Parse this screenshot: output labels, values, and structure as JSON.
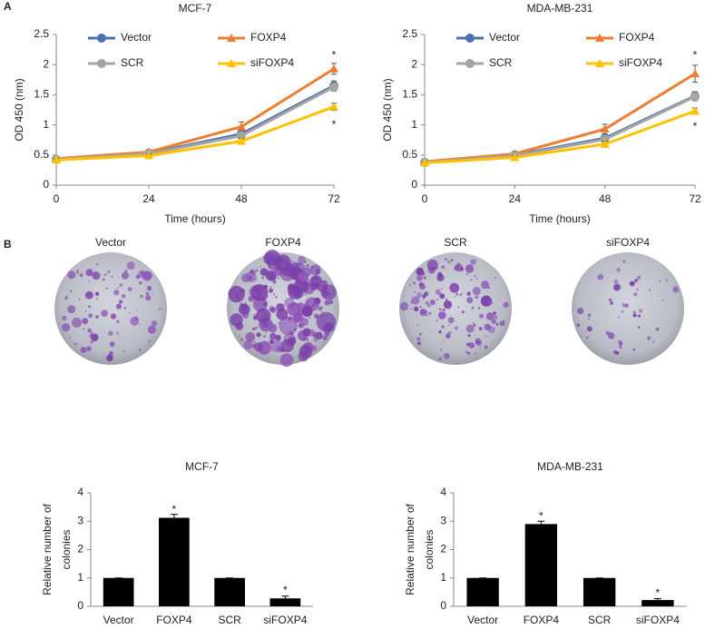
{
  "panel_labels": [
    "A",
    "B"
  ],
  "dish_labels": [
    "Vector",
    "FOXP4",
    "SCR",
    "siFOXP4"
  ],
  "chart_data": [
    {
      "type": "line",
      "title": "MCF-7",
      "xlabel": "Time (hours)",
      "ylabel": "OD 450 (nm)",
      "x": [
        0,
        24,
        48,
        72
      ],
      "xlim": [
        0,
        72
      ],
      "xticks": [
        0,
        24,
        48,
        72
      ],
      "ylim": [
        0,
        2.5
      ],
      "yticks": [
        0,
        0.5,
        1,
        1.5,
        2,
        2.5
      ],
      "series": [
        {
          "name": "Vector",
          "color": "#4a72b0",
          "marker": "circle",
          "values": [
            0.43,
            0.53,
            0.85,
            1.65
          ],
          "errors": [
            0.02,
            0.03,
            0.05,
            0.08
          ]
        },
        {
          "name": "FOXP4",
          "color": "#ed7d31",
          "marker": "triangle",
          "values": [
            0.44,
            0.55,
            0.97,
            1.93
          ],
          "errors": [
            0.02,
            0.03,
            0.08,
            0.09
          ]
        },
        {
          "name": "SCR",
          "color": "#a5a5a5",
          "marker": "circle",
          "values": [
            0.43,
            0.52,
            0.82,
            1.63
          ],
          "errors": [
            0.02,
            0.03,
            0.05,
            0.07
          ]
        },
        {
          "name": "siFOXP4",
          "color": "#ffc000",
          "marker": "triangle",
          "values": [
            0.42,
            0.49,
            0.73,
            1.3
          ],
          "errors": [
            0.02,
            0.03,
            0.05,
            0.06
          ]
        }
      ],
      "annotations": [
        {
          "text": "*",
          "x": 72,
          "y": 2.15
        },
        {
          "text": "*",
          "x": 72,
          "y": 1.0
        }
      ]
    },
    {
      "type": "line",
      "title": "MDA-MB-231",
      "xlabel": "Time (hours)",
      "ylabel": "OD 450 (nm)",
      "x": [
        0,
        24,
        48,
        72
      ],
      "xlim": [
        0,
        72
      ],
      "xticks": [
        0,
        24,
        48,
        72
      ],
      "ylim": [
        0,
        2.5
      ],
      "yticks": [
        0,
        0.5,
        1,
        1.5,
        2,
        2.5
      ],
      "series": [
        {
          "name": "Vector",
          "color": "#4a72b0",
          "marker": "circle",
          "values": [
            0.38,
            0.5,
            0.78,
            1.48
          ],
          "errors": [
            0.02,
            0.04,
            0.05,
            0.07
          ]
        },
        {
          "name": "FOXP4",
          "color": "#ed7d31",
          "marker": "triangle",
          "values": [
            0.39,
            0.52,
            0.93,
            1.85
          ],
          "errors": [
            0.02,
            0.04,
            0.08,
            0.14
          ]
        },
        {
          "name": "SCR",
          "color": "#a5a5a5",
          "marker": "circle",
          "values": [
            0.38,
            0.49,
            0.76,
            1.47
          ],
          "errors": [
            0.02,
            0.04,
            0.05,
            0.07
          ]
        },
        {
          "name": "siFOXP4",
          "color": "#ffc000",
          "marker": "triangle",
          "values": [
            0.37,
            0.46,
            0.68,
            1.23
          ],
          "errors": [
            0.02,
            0.03,
            0.05,
            0.05
          ]
        }
      ],
      "annotations": [
        {
          "text": "*",
          "x": 72,
          "y": 2.15
        },
        {
          "text": "*",
          "x": 72,
          "y": 0.97
        }
      ]
    },
    {
      "type": "bar",
      "title": "MCF-7",
      "ylabel": [
        "Relative number of",
        "colonies"
      ],
      "categories": [
        "Vector",
        "FOXP4",
        "SCR",
        "siFOXP4"
      ],
      "values": [
        1,
        3.12,
        1,
        0.28
      ],
      "errors": [
        0,
        0.12,
        0,
        0.08
      ],
      "color": "#000000",
      "ylim": [
        0,
        4
      ],
      "yticks": [
        0,
        1,
        2,
        3,
        4
      ],
      "annotations": [
        {
          "text": "*",
          "x": 1,
          "y": 3.4
        },
        {
          "text": "*",
          "x": 3,
          "y": 0.55
        }
      ]
    },
    {
      "type": "bar",
      "title": "MDA-MB-231",
      "ylabel": [
        "Relative number of",
        "colonies"
      ],
      "categories": [
        "Vector",
        "FOXP4",
        "SCR",
        "siFOXP4"
      ],
      "values": [
        1,
        2.9,
        1,
        0.22
      ],
      "errors": [
        0,
        0.1,
        0,
        0.05
      ],
      "color": "#000000",
      "ylim": [
        0,
        4
      ],
      "yticks": [
        0,
        1,
        2,
        3,
        4
      ],
      "annotations": [
        {
          "text": "*",
          "x": 1,
          "y": 3.15
        },
        {
          "text": "*",
          "x": 3,
          "y": 0.45
        }
      ]
    }
  ]
}
